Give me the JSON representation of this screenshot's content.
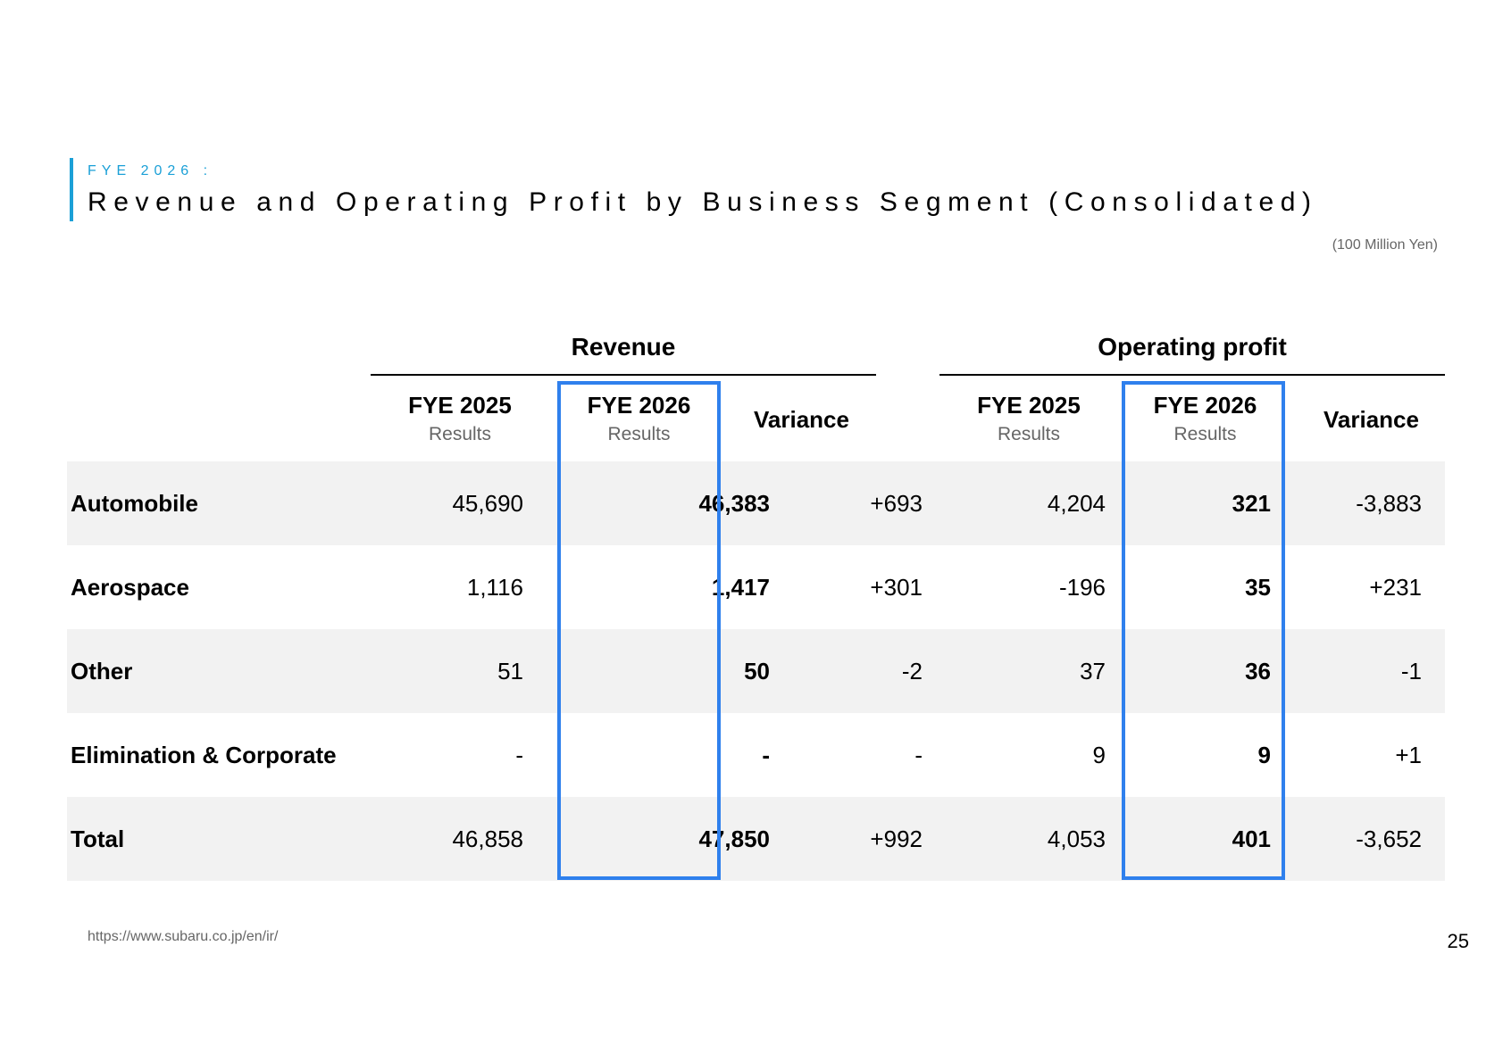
{
  "header": {
    "kicker": "FYE 2026 :",
    "title": "Revenue and Operating Profit by Business Segment (Consolidated)",
    "unit": "(100 Million Yen)"
  },
  "groups": {
    "revenue": "Revenue",
    "operating_profit": "Operating profit"
  },
  "columns": {
    "rev_2025_main": "FYE 2025",
    "rev_2025_sub": "Results",
    "rev_2026_main": "FYE 2026",
    "rev_2026_sub": "Results",
    "rev_var": "Variance",
    "op_2025_main": "FYE 2025",
    "op_2025_sub": "Results",
    "op_2026_main": "FYE 2026",
    "op_2026_sub": "Results",
    "op_var": "Variance"
  },
  "rows": [
    {
      "label": "Automobile",
      "rev_2025": "45,690",
      "rev_2026": "46,383",
      "rev_var": "+693",
      "op_2025": "4,204",
      "op_2026": "321",
      "op_var": "-3,883"
    },
    {
      "label": "Aerospace",
      "rev_2025": "1,116",
      "rev_2026": "1,417",
      "rev_var": "+301",
      "op_2025": "-196",
      "op_2026": "35",
      "op_var": "+231"
    },
    {
      "label": "Other",
      "rev_2025": "51",
      "rev_2026": "50",
      "rev_var": "-2",
      "op_2025": "37",
      "op_2026": "36",
      "op_var": "-1"
    },
    {
      "label": "Elimination & Corporate",
      "rev_2025": "-",
      "rev_2026": "-",
      "rev_var": "-",
      "op_2025": "9",
      "op_2026": "9",
      "op_var": "+1"
    },
    {
      "label": "Total",
      "rev_2025": "46,858",
      "rev_2026": "47,850",
      "rev_var": "+992",
      "op_2025": "4,053",
      "op_2026": "401",
      "op_var": "-3,652"
    }
  ],
  "footer": {
    "url": "https://www.subaru.co.jp/en/ir/",
    "page": "25"
  },
  "colors": {
    "accent": "#1ba0d7",
    "highlight_box": "#2f80ed",
    "row_shade": "#f2f2f2"
  }
}
